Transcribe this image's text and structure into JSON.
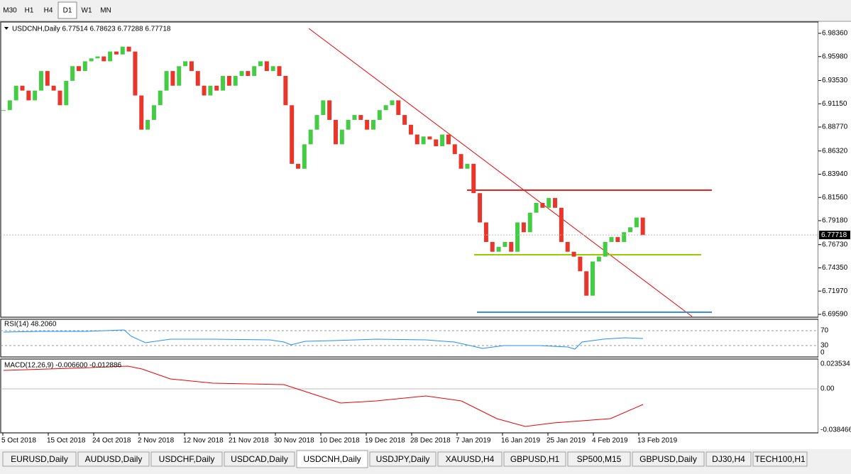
{
  "toolbar": {
    "timeframes": [
      "M30",
      "H1",
      "H4",
      "D1",
      "W1",
      "MN"
    ],
    "active": "D1"
  },
  "chart": {
    "header": "USDCNH,Daily  6.77514 6.78623 6.77288 6.77718",
    "ylim": [
      6.6959,
      6.9836
    ],
    "price_labels": [
      {
        "value": 6.9836,
        "label": "6.98360"
      },
      {
        "value": 6.9598,
        "label": "6.95980"
      },
      {
        "value": 6.9353,
        "label": "6.93530"
      },
      {
        "value": 6.9115,
        "label": "6.91150"
      },
      {
        "value": 6.8877,
        "label": "6.88770"
      },
      {
        "value": 6.8632,
        "label": "6.86320"
      },
      {
        "value": 6.8394,
        "label": "6.83940"
      },
      {
        "value": 6.8156,
        "label": "6.81560"
      },
      {
        "value": 6.7918,
        "label": "6.79180"
      },
      {
        "value": 6.7673,
        "label": "6.76730"
      },
      {
        "value": 6.7435,
        "label": "6.74350"
      },
      {
        "value": 6.7197,
        "label": "6.71970"
      },
      {
        "value": 6.6959,
        "label": "6.69590"
      }
    ],
    "bid": {
      "value": 6.77718,
      "label": "6.77718"
    },
    "up_color": "#44cc44",
    "down_color": "#e8372a",
    "closes": [
      6.905,
      6.915,
      6.93,
      6.925,
      6.915,
      6.925,
      6.945,
      6.93,
      6.925,
      6.91,
      6.935,
      6.95,
      6.945,
      6.955,
      6.958,
      6.96,
      6.955,
      6.965,
      6.962,
      6.97,
      6.965,
      6.92,
      6.885,
      6.895,
      6.91,
      6.925,
      6.945,
      6.93,
      6.95,
      6.955,
      6.945,
      6.93,
      6.92,
      6.93,
      6.925,
      6.94,
      6.93,
      6.94,
      6.945,
      6.94,
      6.95,
      6.955,
      6.945,
      6.95,
      6.94,
      6.91,
      6.85,
      6.845,
      6.87,
      6.885,
      6.9,
      6.915,
      6.895,
      6.87,
      6.885,
      6.895,
      6.9,
      6.895,
      6.885,
      6.895,
      6.905,
      6.91,
      6.915,
      6.9,
      6.89,
      6.88,
      6.87,
      6.878,
      6.875,
      6.868,
      6.88,
      6.87,
      6.86,
      6.845,
      6.85,
      6.82,
      6.79,
      6.77,
      6.76,
      6.765,
      6.77,
      6.76,
      6.79,
      6.78,
      6.8,
      6.81,
      6.805,
      6.815,
      6.805,
      6.77,
      6.76,
      6.755,
      6.74,
      6.715,
      6.75,
      6.755,
      6.77,
      6.775,
      6.77,
      6.78,
      6.785,
      6.795,
      6.777
    ],
    "dates": [
      "5 Oct 2018",
      "15 Oct 2018",
      "24 Oct 2018",
      "2 Nov 2018",
      "12 Nov 2018",
      "21 Nov 2018",
      "30 Nov 2018",
      "10 Dec 2018",
      "19 Dec 2018",
      "28 Dec 2018",
      "7 Jan 2019",
      "16 Jan 2019",
      "25 Jan 2019",
      "4 Feb 2019",
      "13 Feb 2019"
    ]
  },
  "rsi": {
    "header": "RSI(14) 48.2060",
    "levels": [
      "70",
      "30",
      "0"
    ]
  },
  "macd": {
    "header": "MACD(12,26,9) -0.006600 -0.012886",
    "labels": [
      "0.023534",
      "0.00",
      "-0.038466"
    ]
  },
  "tabs": [
    "EURUSD,Daily",
    "AUDUSD,Daily",
    "USDCHF,Daily",
    "USDCAD,Daily",
    "USDCNH,Daily",
    "USDJPY,Daily",
    "XAUUSD,H4",
    "GBPUSD,H1",
    "SP500,M15",
    "GBPUSD,Daily",
    "DJ30,H4",
    "TECH100,H1"
  ],
  "active_tab": "USDCNH,Daily"
}
